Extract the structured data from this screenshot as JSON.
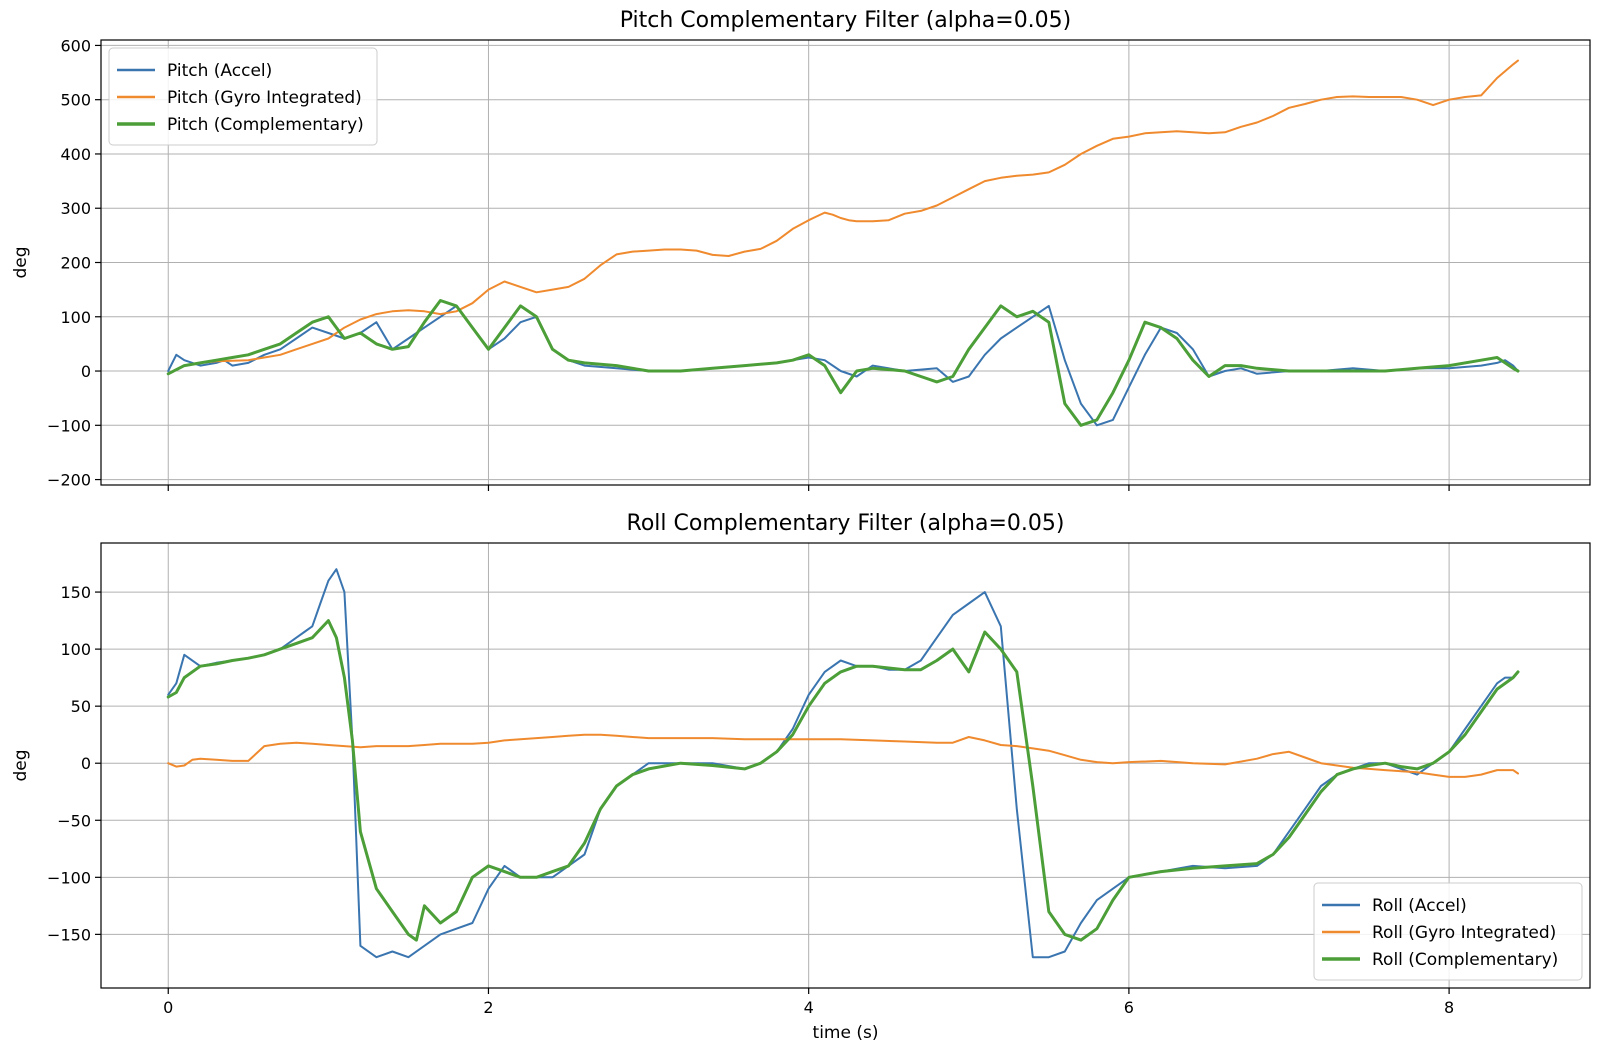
{
  "chart_data": [
    {
      "type": "line",
      "title": "Pitch Complementary Filter (alpha=0.05)",
      "xlabel": "",
      "ylabel": "deg",
      "xlim": [
        -0.42,
        8.88
      ],
      "ylim": [
        -210,
        610
      ],
      "xticks": [
        0,
        2,
        4,
        6,
        8
      ],
      "yticks": [
        -200,
        -100,
        0,
        100,
        200,
        300,
        400,
        500,
        600
      ],
      "xtick_labels_visible": false,
      "grid": true,
      "legend": "upper-left",
      "series": [
        {
          "name": "Pitch (Accel)",
          "color": "#3a75b0",
          "width": 2.0,
          "x": [
            0.0,
            0.05,
            0.1,
            0.2,
            0.3,
            0.35,
            0.4,
            0.5,
            0.6,
            0.7,
            0.8,
            0.9,
            1.0,
            1.1,
            1.2,
            1.3,
            1.4,
            1.5,
            1.6,
            1.7,
            1.8,
            1.9,
            2.0,
            2.1,
            2.2,
            2.3,
            2.4,
            2.5,
            2.6,
            2.8,
            3.0,
            3.2,
            3.4,
            3.6,
            3.8,
            3.9,
            4.0,
            4.1,
            4.2,
            4.3,
            4.4,
            4.6,
            4.8,
            4.9,
            5.0,
            5.1,
            5.2,
            5.3,
            5.4,
            5.5,
            5.6,
            5.7,
            5.8,
            5.9,
            6.0,
            6.1,
            6.2,
            6.3,
            6.4,
            6.5,
            6.6,
            6.7,
            6.8,
            7.0,
            7.2,
            7.4,
            7.6,
            7.8,
            8.0,
            8.2,
            8.3,
            8.35,
            8.4,
            8.43
          ],
          "y": [
            0,
            30,
            20,
            10,
            15,
            20,
            10,
            15,
            30,
            40,
            60,
            80,
            70,
            60,
            70,
            90,
            40,
            60,
            80,
            100,
            120,
            80,
            40,
            60,
            90,
            100,
            40,
            20,
            10,
            5,
            0,
            0,
            5,
            10,
            15,
            20,
            25,
            20,
            0,
            -10,
            10,
            0,
            5,
            -20,
            -10,
            30,
            60,
            80,
            100,
            120,
            20,
            -60,
            -100,
            -90,
            -30,
            30,
            80,
            70,
            40,
            -10,
            0,
            5,
            -5,
            0,
            0,
            5,
            0,
            5,
            5,
            10,
            15,
            20,
            10,
            0
          ]
        },
        {
          "name": "Pitch (Gyro Integrated)",
          "color": "#f08a2e",
          "width": 2.0,
          "x": [
            0.0,
            0.1,
            0.2,
            0.3,
            0.5,
            0.6,
            0.7,
            0.8,
            0.9,
            1.0,
            1.1,
            1.2,
            1.3,
            1.4,
            1.5,
            1.6,
            1.7,
            1.8,
            1.9,
            2.0,
            2.1,
            2.2,
            2.3,
            2.4,
            2.5,
            2.6,
            2.7,
            2.8,
            2.9,
            3.0,
            3.1,
            3.2,
            3.3,
            3.4,
            3.5,
            3.6,
            3.7,
            3.8,
            3.9,
            4.0,
            4.05,
            4.1,
            4.15,
            4.2,
            4.25,
            4.3,
            4.4,
            4.5,
            4.6,
            4.7,
            4.8,
            4.9,
            5.0,
            5.1,
            5.2,
            5.3,
            5.4,
            5.5,
            5.6,
            5.7,
            5.8,
            5.9,
            6.0,
            6.1,
            6.2,
            6.3,
            6.4,
            6.5,
            6.6,
            6.7,
            6.8,
            6.9,
            7.0,
            7.1,
            7.2,
            7.3,
            7.4,
            7.5,
            7.6,
            7.7,
            7.8,
            7.9,
            8.0,
            8.1,
            8.2,
            8.3,
            8.4,
            8.43
          ],
          "y": [
            -5,
            10,
            15,
            18,
            20,
            25,
            30,
            40,
            50,
            60,
            80,
            95,
            105,
            110,
            112,
            110,
            105,
            110,
            125,
            150,
            165,
            155,
            145,
            150,
            155,
            170,
            195,
            215,
            220,
            222,
            224,
            224,
            222,
            214,
            212,
            220,
            225,
            240,
            262,
            278,
            285,
            292,
            288,
            282,
            278,
            276,
            276,
            278,
            290,
            295,
            305,
            320,
            335,
            350,
            356,
            360,
            362,
            366,
            380,
            400,
            415,
            428,
            432,
            438,
            440,
            442,
            440,
            438,
            440,
            450,
            458,
            470,
            485,
            492,
            500,
            505,
            506,
            505,
            505,
            505,
            500,
            490,
            500,
            505,
            508,
            540,
            565,
            572
          ]
        },
        {
          "name": "Pitch (Complementary)",
          "color": "#4c9f38",
          "width": 3.0,
          "x": [
            0.0,
            0.1,
            0.2,
            0.3,
            0.4,
            0.5,
            0.6,
            0.7,
            0.8,
            0.9,
            1.0,
            1.1,
            1.2,
            1.3,
            1.4,
            1.5,
            1.6,
            1.7,
            1.8,
            1.9,
            2.0,
            2.1,
            2.2,
            2.3,
            2.4,
            2.5,
            2.6,
            2.8,
            3.0,
            3.2,
            3.4,
            3.6,
            3.8,
            3.9,
            4.0,
            4.1,
            4.2,
            4.3,
            4.4,
            4.6,
            4.8,
            4.9,
            5.0,
            5.1,
            5.2,
            5.3,
            5.4,
            5.5,
            5.6,
            5.7,
            5.8,
            5.9,
            6.0,
            6.1,
            6.2,
            6.3,
            6.4,
            6.5,
            6.6,
            6.7,
            6.8,
            7.0,
            7.2,
            7.4,
            7.6,
            7.8,
            8.0,
            8.2,
            8.3,
            8.35,
            8.4,
            8.43
          ],
          "y": [
            -5,
            10,
            15,
            20,
            25,
            30,
            40,
            50,
            70,
            90,
            100,
            60,
            70,
            50,
            40,
            45,
            90,
            130,
            120,
            80,
            40,
            80,
            120,
            100,
            40,
            20,
            15,
            10,
            0,
            0,
            5,
            10,
            15,
            20,
            30,
            10,
            -40,
            0,
            5,
            0,
            -20,
            -10,
            40,
            80,
            120,
            100,
            110,
            90,
            -60,
            -100,
            -90,
            -40,
            20,
            90,
            80,
            60,
            20,
            -10,
            10,
            10,
            5,
            0,
            0,
            0,
            0,
            5,
            10,
            20,
            25,
            15,
            5,
            0
          ]
        }
      ]
    },
    {
      "type": "line",
      "title": "Roll Complementary Filter (alpha=0.05)",
      "xlabel": "time (s)",
      "ylabel": "deg",
      "xlim": [
        -0.42,
        8.88
      ],
      "ylim": [
        -197,
        193
      ],
      "xticks": [
        0,
        2,
        4,
        6,
        8
      ],
      "yticks": [
        -150,
        -100,
        -50,
        0,
        50,
        100,
        150
      ],
      "xtick_labels_visible": true,
      "grid": true,
      "legend": "lower-right",
      "series": [
        {
          "name": "Roll (Accel)",
          "color": "#3a75b0",
          "width": 2.0,
          "x": [
            0.0,
            0.05,
            0.1,
            0.2,
            0.3,
            0.4,
            0.5,
            0.6,
            0.7,
            0.8,
            0.85,
            0.9,
            0.95,
            1.0,
            1.05,
            1.1,
            1.15,
            1.2,
            1.3,
            1.4,
            1.5,
            1.6,
            1.7,
            1.8,
            1.9,
            2.0,
            2.1,
            2.2,
            2.3,
            2.4,
            2.5,
            2.6,
            2.7,
            2.8,
            2.9,
            3.0,
            3.2,
            3.4,
            3.6,
            3.7,
            3.8,
            3.9,
            4.0,
            4.1,
            4.2,
            4.3,
            4.4,
            4.5,
            4.6,
            4.7,
            4.8,
            4.9,
            5.0,
            5.1,
            5.2,
            5.3,
            5.4,
            5.5,
            5.6,
            5.7,
            5.8,
            5.9,
            6.0,
            6.2,
            6.4,
            6.6,
            6.8,
            6.9,
            7.0,
            7.1,
            7.2,
            7.3,
            7.4,
            7.5,
            7.6,
            7.7,
            7.8,
            7.9,
            8.0,
            8.1,
            8.2,
            8.3,
            8.35,
            8.4,
            8.43
          ],
          "y": [
            60,
            70,
            95,
            85,
            88,
            90,
            92,
            95,
            100,
            110,
            115,
            120,
            140,
            160,
            170,
            150,
            20,
            -160,
            -170,
            -165,
            -170,
            -160,
            -150,
            -145,
            -140,
            -110,
            -90,
            -100,
            -100,
            -100,
            -90,
            -80,
            -40,
            -20,
            -10,
            0,
            0,
            0,
            -5,
            0,
            10,
            30,
            60,
            80,
            90,
            85,
            85,
            82,
            82,
            90,
            110,
            130,
            140,
            150,
            120,
            -40,
            -170,
            -170,
            -165,
            -140,
            -120,
            -110,
            -100,
            -95,
            -90,
            -92,
            -90,
            -80,
            -60,
            -40,
            -20,
            -10,
            -5,
            0,
            0,
            -5,
            -10,
            0,
            10,
            30,
            50,
            70,
            75,
            75,
            80
          ]
        },
        {
          "name": "Roll (Gyro Integrated)",
          "color": "#f08a2e",
          "width": 2.0,
          "x": [
            0.0,
            0.05,
            0.1,
            0.15,
            0.2,
            0.3,
            0.4,
            0.5,
            0.6,
            0.7,
            0.8,
            0.9,
            1.0,
            1.1,
            1.2,
            1.3,
            1.4,
            1.5,
            1.6,
            1.7,
            1.8,
            1.9,
            2.0,
            2.1,
            2.2,
            2.3,
            2.4,
            2.5,
            2.6,
            2.7,
            2.8,
            2.9,
            3.0,
            3.2,
            3.4,
            3.6,
            3.8,
            4.0,
            4.2,
            4.4,
            4.6,
            4.8,
            4.9,
            5.0,
            5.1,
            5.2,
            5.3,
            5.4,
            5.5,
            5.6,
            5.7,
            5.8,
            5.9,
            6.0,
            6.2,
            6.4,
            6.6,
            6.8,
            6.9,
            7.0,
            7.1,
            7.2,
            7.3,
            7.4,
            7.5,
            7.6,
            7.7,
            7.8,
            7.9,
            8.0,
            8.1,
            8.2,
            8.3,
            8.4,
            8.43
          ],
          "y": [
            0,
            -3,
            -2,
            3,
            4,
            3,
            2,
            2,
            15,
            17,
            18,
            17,
            16,
            15,
            14,
            15,
            15,
            15,
            16,
            17,
            17,
            17,
            18,
            20,
            21,
            22,
            23,
            24,
            25,
            25,
            24,
            23,
            22,
            22,
            22,
            21,
            21,
            21,
            21,
            20,
            19,
            18,
            18,
            23,
            20,
            16,
            15,
            13,
            11,
            7,
            3,
            1,
            0,
            1,
            2,
            0,
            -1,
            4,
            8,
            10,
            5,
            0,
            -2,
            -4,
            -5,
            -6,
            -7,
            -8,
            -10,
            -12,
            -12,
            -10,
            -6,
            -6,
            -9
          ]
        },
        {
          "name": "Roll (Complementary)",
          "color": "#4c9f38",
          "width": 3.0,
          "x": [
            0.0,
            0.05,
            0.1,
            0.2,
            0.3,
            0.4,
            0.5,
            0.6,
            0.7,
            0.8,
            0.9,
            1.0,
            1.05,
            1.1,
            1.15,
            1.2,
            1.3,
            1.4,
            1.5,
            1.55,
            1.6,
            1.7,
            1.8,
            1.9,
            2.0,
            2.1,
            2.2,
            2.3,
            2.4,
            2.5,
            2.6,
            2.7,
            2.8,
            2.9,
            3.0,
            3.2,
            3.4,
            3.6,
            3.7,
            3.8,
            3.9,
            4.0,
            4.1,
            4.2,
            4.3,
            4.4,
            4.6,
            4.7,
            4.8,
            4.9,
            5.0,
            5.1,
            5.2,
            5.3,
            5.4,
            5.5,
            5.6,
            5.7,
            5.8,
            5.9,
            6.0,
            6.2,
            6.4,
            6.6,
            6.8,
            6.9,
            7.0,
            7.1,
            7.2,
            7.3,
            7.4,
            7.5,
            7.6,
            7.7,
            7.8,
            7.9,
            8.0,
            8.1,
            8.2,
            8.3,
            8.4,
            8.43
          ],
          "y": [
            58,
            62,
            75,
            85,
            87,
            90,
            92,
            95,
            100,
            105,
            110,
            125,
            110,
            75,
            20,
            -60,
            -110,
            -130,
            -150,
            -155,
            -125,
            -140,
            -130,
            -100,
            -90,
            -95,
            -100,
            -100,
            -95,
            -90,
            -70,
            -40,
            -20,
            -10,
            -5,
            0,
            -2,
            -5,
            0,
            10,
            25,
            50,
            70,
            80,
            85,
            85,
            82,
            82,
            90,
            100,
            80,
            115,
            100,
            80,
            -20,
            -130,
            -150,
            -155,
            -145,
            -120,
            -100,
            -95,
            -92,
            -90,
            -88,
            -80,
            -65,
            -45,
            -25,
            -10,
            -5,
            -2,
            0,
            -3,
            -5,
            0,
            10,
            25,
            45,
            65,
            75,
            80
          ]
        }
      ]
    }
  ]
}
